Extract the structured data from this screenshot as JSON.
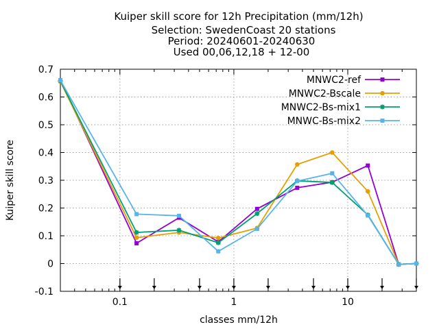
{
  "chart_data": {
    "type": "line",
    "title_lines": [
      "Kuiper skill score  for 12h Precipitation (mm/12h)",
      "Selection: SwedenCoast      20 stations",
      "Period: 20240601-20240630",
      "Used 00,06,12,18 + 12-00"
    ],
    "xlabel": "classes mm/12h",
    "ylabel": "Kuiper skill score",
    "xscale": "log",
    "xlim": [
      0.03,
      40
    ],
    "ylim": [
      -0.1,
      0.7
    ],
    "yticks": [
      -0.1,
      0,
      0.1,
      0.2,
      0.3,
      0.4,
      0.5,
      0.6,
      0.7
    ],
    "ytick_labels": [
      "-0.1",
      "0",
      "0.1",
      "0.2",
      "0.3",
      "0.4",
      "0.5",
      "0.6",
      "0.7"
    ],
    "xticks": [
      0.1,
      1,
      10
    ],
    "xtick_labels": [
      "0.1",
      "1",
      "10"
    ],
    "grid": true,
    "legend_position": "top-right",
    "arrow_markers_x": [
      0.1,
      0.2,
      0.5,
      1,
      2,
      5,
      10,
      20,
      40
    ],
    "series": [
      {
        "name": "MNWC2-ref",
        "color": "#9400d3",
        "marker": "filled-square",
        "x": [
          0.03,
          0.14,
          0.33,
          0.73,
          1.6,
          3.6,
          7.3,
          15,
          28,
          40
        ],
        "y": [
          0.66,
          0.073,
          0.165,
          0.078,
          0.197,
          0.273,
          0.293,
          0.353,
          -0.003,
          0.0
        ]
      },
      {
        "name": "MNWC2-Bscale",
        "color": "#e69f00",
        "marker": "filled-circle",
        "x": [
          0.03,
          0.14,
          0.33,
          0.73,
          1.6,
          3.6,
          7.3,
          15,
          28,
          40
        ],
        "y": [
          0.655,
          0.093,
          0.112,
          0.092,
          0.128,
          0.357,
          0.4,
          0.26,
          -0.003,
          0.0
        ]
      },
      {
        "name": "MNWC2-Bs-mix1",
        "color": "#009e73",
        "marker": "star",
        "x": [
          0.03,
          0.14,
          0.33,
          0.73,
          1.6,
          3.6,
          7.3,
          15,
          28,
          40
        ],
        "y": [
          0.658,
          0.112,
          0.12,
          0.075,
          0.18,
          0.298,
          0.292,
          0.175,
          -0.003,
          0.0
        ]
      },
      {
        "name": "MNWC-Bs-mix2",
        "color": "#56b4e9",
        "marker": "box",
        "x": [
          0.03,
          0.14,
          0.33,
          0.73,
          1.6,
          3.6,
          7.3,
          15,
          28,
          40
        ],
        "y": [
          0.66,
          0.178,
          0.172,
          0.044,
          0.125,
          0.297,
          0.325,
          0.173,
          -0.003,
          0.0
        ]
      }
    ]
  }
}
